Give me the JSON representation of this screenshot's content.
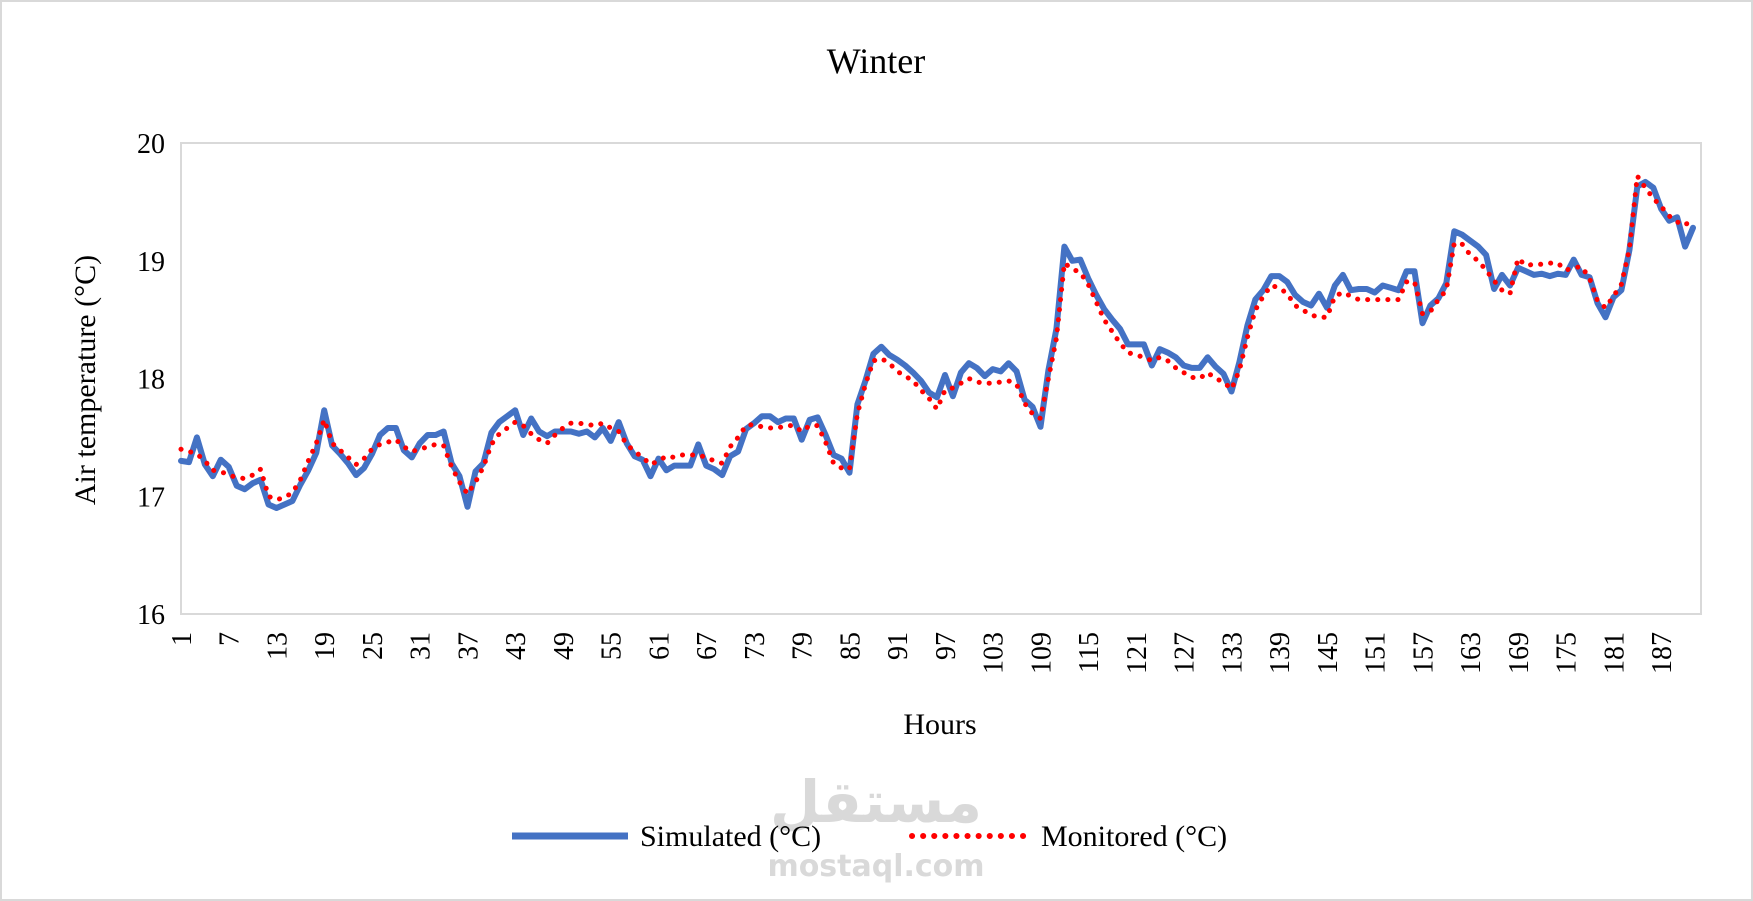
{
  "chart_data": {
    "type": "line",
    "title": "Winter",
    "xlabel": "Hours",
    "ylabel": "Air temperature  (°C)",
    "ylim": [
      16,
      20
    ],
    "xlim": [
      1,
      192
    ],
    "y_ticks": [
      16,
      17,
      18,
      19,
      20
    ],
    "x_tick_labels": [
      "1",
      "7",
      "13",
      "19",
      "25",
      "31",
      "37",
      "43",
      "49",
      "55",
      "61",
      "67",
      "73",
      "79",
      "85",
      "91",
      "97",
      "103",
      "109",
      "115",
      "121",
      "127",
      "133",
      "139",
      "145",
      "151",
      "157",
      "163",
      "169",
      "175",
      "181",
      "187"
    ],
    "grid": false,
    "legend_position": "bottom",
    "series": [
      {
        "name": "Simulated (°C)",
        "color": "#4472C4",
        "style": "solid",
        "values": [
          17.3,
          17.29,
          17.5,
          17.27,
          17.17,
          17.31,
          17.25,
          17.09,
          17.06,
          17.11,
          17.14,
          16.93,
          16.9,
          16.93,
          16.96,
          17.1,
          17.22,
          17.37,
          17.73,
          17.43,
          17.36,
          17.28,
          17.18,
          17.24,
          17.36,
          17.52,
          17.58,
          17.58,
          17.39,
          17.33,
          17.45,
          17.52,
          17.52,
          17.55,
          17.28,
          17.17,
          16.91,
          17.21,
          17.28,
          17.54,
          17.63,
          17.68,
          17.73,
          17.52,
          17.66,
          17.55,
          17.51,
          17.55,
          17.55,
          17.55,
          17.53,
          17.55,
          17.5,
          17.58,
          17.47,
          17.63,
          17.45,
          17.34,
          17.31,
          17.17,
          17.32,
          17.22,
          17.26,
          17.26,
          17.26,
          17.44,
          17.26,
          17.23,
          17.18,
          17.34,
          17.38,
          17.57,
          17.62,
          17.68,
          17.68,
          17.63,
          17.66,
          17.66,
          17.48,
          17.65,
          17.67,
          17.52,
          17.35,
          17.32,
          17.2,
          17.78,
          17.98,
          18.21,
          18.27,
          18.2,
          18.16,
          18.11,
          18.05,
          17.98,
          17.88,
          17.84,
          18.03,
          17.85,
          18.05,
          18.13,
          18.09,
          18.02,
          18.08,
          18.06,
          18.13,
          18.06,
          17.82,
          17.76,
          17.59,
          18.07,
          18.42,
          19.12,
          19.0,
          19.01,
          18.85,
          18.71,
          18.59,
          18.5,
          18.42,
          18.29,
          18.29,
          18.29,
          18.11,
          18.25,
          18.22,
          18.18,
          18.11,
          18.09,
          18.09,
          18.18,
          18.1,
          18.04,
          17.89,
          18.14,
          18.45,
          18.67,
          18.75,
          18.87,
          18.87,
          18.82,
          18.71,
          18.65,
          18.62,
          18.72,
          18.6,
          18.79,
          18.88,
          18.75,
          18.76,
          18.76,
          18.73,
          18.79,
          18.77,
          18.75,
          18.91,
          18.91,
          18.47,
          18.62,
          18.68,
          18.81,
          19.25,
          19.22,
          19.17,
          19.12,
          19.05,
          18.76,
          18.88,
          18.79,
          18.94,
          18.91,
          18.88,
          18.89,
          18.87,
          18.89,
          18.88,
          19.01,
          18.88,
          18.86,
          18.64,
          18.52,
          18.69,
          18.75,
          19.09,
          19.63,
          19.67,
          19.62,
          19.44,
          19.34,
          19.37,
          19.12,
          19.28
        ]
      },
      {
        "name": "Monitored (°C)",
        "color": "#FF0000",
        "style": "dotted",
        "values": [
          17.4,
          17.38,
          17.36,
          17.3,
          17.22,
          17.21,
          17.18,
          17.16,
          17.15,
          17.18,
          17.23,
          17.0,
          16.97,
          16.99,
          17.03,
          17.14,
          17.3,
          17.45,
          17.65,
          17.45,
          17.39,
          17.33,
          17.27,
          17.32,
          17.4,
          17.44,
          17.46,
          17.48,
          17.42,
          17.38,
          17.4,
          17.42,
          17.44,
          17.43,
          17.25,
          17.12,
          17.02,
          17.12,
          17.25,
          17.44,
          17.53,
          17.58,
          17.63,
          17.6,
          17.53,
          17.48,
          17.45,
          17.52,
          17.58,
          17.62,
          17.62,
          17.61,
          17.6,
          17.62,
          17.58,
          17.55,
          17.44,
          17.38,
          17.33,
          17.27,
          17.3,
          17.34,
          17.33,
          17.35,
          17.35,
          17.35,
          17.33,
          17.3,
          17.28,
          17.42,
          17.5,
          17.6,
          17.61,
          17.59,
          17.58,
          17.58,
          17.6,
          17.6,
          17.55,
          17.6,
          17.6,
          17.46,
          17.28,
          17.24,
          17.23,
          17.7,
          17.95,
          18.15,
          18.17,
          18.13,
          18.06,
          18.02,
          17.98,
          17.9,
          17.83,
          17.74,
          17.9,
          17.92,
          17.96,
          18.0,
          17.97,
          17.96,
          17.96,
          17.97,
          17.98,
          17.95,
          17.79,
          17.7,
          17.66,
          18.0,
          18.34,
          18.98,
          18.93,
          18.9,
          18.8,
          18.65,
          18.5,
          18.4,
          18.3,
          18.22,
          18.2,
          18.18,
          18.15,
          18.18,
          18.15,
          18.09,
          18.05,
          18.01,
          18.0,
          18.05,
          18.0,
          17.97,
          17.91,
          18.07,
          18.35,
          18.58,
          18.7,
          18.79,
          18.77,
          18.72,
          18.62,
          18.58,
          18.54,
          18.52,
          18.52,
          18.7,
          18.73,
          18.7,
          18.67,
          18.67,
          18.67,
          18.67,
          18.67,
          18.67,
          18.82,
          18.82,
          18.55,
          18.57,
          18.67,
          18.75,
          19.15,
          19.14,
          19.05,
          19.0,
          18.92,
          18.83,
          18.75,
          18.72,
          19.02,
          18.96,
          18.97,
          18.97,
          18.98,
          18.98,
          18.92,
          18.94,
          18.95,
          18.85,
          18.66,
          18.6,
          18.7,
          18.8,
          19.1,
          19.72,
          19.62,
          19.53,
          19.46,
          19.38,
          19.33,
          19.3,
          19.37
        ]
      }
    ]
  },
  "legend": {
    "items": [
      {
        "label": "Simulated (°C)",
        "color": "#4472C4",
        "style": "solid"
      },
      {
        "label": "Monitored (°C)",
        "color": "#FF0000",
        "style": "dotted"
      }
    ]
  },
  "watermark": {
    "arabic": "مستقل",
    "latin": "mostaql.com",
    "color": "#d9d9d9"
  }
}
